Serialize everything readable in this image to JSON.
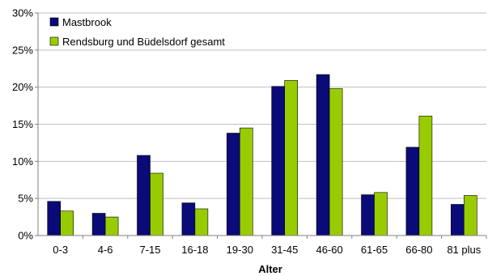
{
  "chart_data": {
    "type": "bar",
    "title": "",
    "xlabel": "Alter",
    "ylabel": "",
    "categories": [
      "0-3",
      "4-6",
      "7-15",
      "16-18",
      "19-30",
      "31-45",
      "46-60",
      "61-65",
      "66-80",
      "81 plus"
    ],
    "series": [
      {
        "name": "Mastbrook",
        "color": "#0a0a78",
        "values": [
          4.6,
          3.0,
          10.8,
          4.4,
          13.8,
          20.1,
          21.7,
          5.5,
          11.9,
          4.2
        ]
      },
      {
        "name": "Rendsburg und Büdelsdorf gesamt",
        "color": "#99cc00",
        "values": [
          3.3,
          2.5,
          8.4,
          3.6,
          14.5,
          20.9,
          19.8,
          5.8,
          16.1,
          5.4
        ]
      }
    ],
    "ylim": [
      0,
      30
    ],
    "yticks": [
      0,
      5,
      10,
      15,
      20,
      25,
      30
    ],
    "ytick_labels": [
      "0%",
      "5%",
      "10%",
      "15%",
      "20%",
      "25%",
      "30%"
    ],
    "grid": true,
    "legend_position": "top-left"
  }
}
